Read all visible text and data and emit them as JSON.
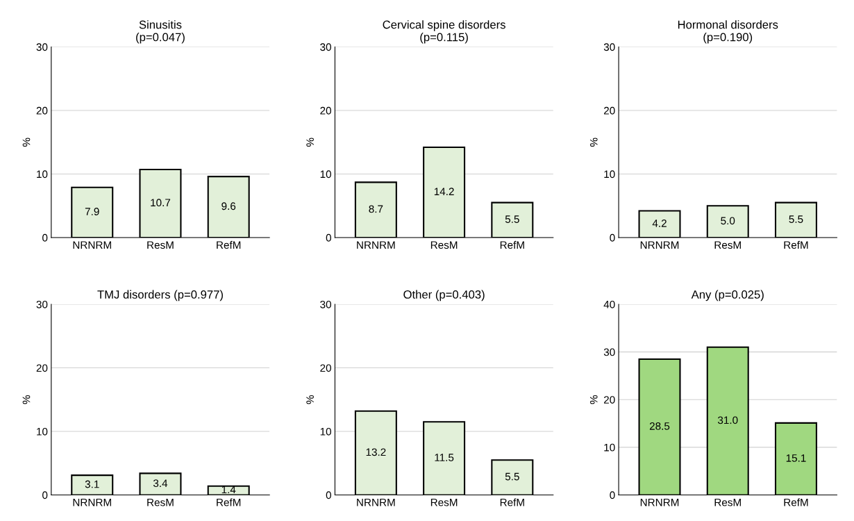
{
  "chart_data": [
    {
      "type": "bar",
      "title": "Sinusitis\n(p=0.047)",
      "ylabel": "%",
      "categories": [
        "NRNRM",
        "ResM",
        "RefM"
      ],
      "values": [
        7.9,
        10.7,
        9.6
      ],
      "value_labels": [
        "7.9",
        "10.7",
        "9.6"
      ],
      "color": "#e2f0d9",
      "ylim": [
        0,
        30
      ],
      "yticks": [
        0,
        10,
        20,
        30
      ],
      "grid": "y"
    },
    {
      "type": "bar",
      "title": "Cervical spine disorders\n(p=0.115)",
      "ylabel": "%",
      "categories": [
        "NRNRM",
        "ResM",
        "RefM"
      ],
      "values": [
        8.7,
        14.2,
        5.5
      ],
      "value_labels": [
        "8.7",
        "14.2",
        "5.5"
      ],
      "color": "#e2f0d9",
      "ylim": [
        0,
        30
      ],
      "yticks": [
        0,
        10,
        20,
        30
      ],
      "grid": "y"
    },
    {
      "type": "bar",
      "title": "Hormonal disorders\n(p=0.190)",
      "ylabel": "%",
      "categories": [
        "NRNRM",
        "ResM",
        "RefM"
      ],
      "values": [
        4.2,
        5,
        5.5
      ],
      "value_labels": [
        "4.2",
        "5.0",
        "5.5"
      ],
      "color": "#e2f0d9",
      "ylim": [
        0,
        30
      ],
      "yticks": [
        0,
        10,
        20,
        30
      ],
      "grid": "y"
    },
    {
      "type": "bar",
      "title": "TMJ disorders (p=0.977)",
      "ylabel": "%",
      "categories": [
        "NRNRM",
        "ResM",
        "RefM"
      ],
      "values": [
        3.1,
        3.4,
        1.4
      ],
      "value_labels": [
        "3.1",
        "3.4",
        "1.4"
      ],
      "color": "#e2f0d9",
      "ylim": [
        0,
        30
      ],
      "yticks": [
        0,
        10,
        20,
        30
      ],
      "grid": "y"
    },
    {
      "type": "bar",
      "title": "Other (p=0.403)",
      "ylabel": "%",
      "categories": [
        "NRNRM",
        "ResM",
        "RefM"
      ],
      "values": [
        13.2,
        11.5,
        5.5
      ],
      "value_labels": [
        "13.2",
        "11.5",
        "5.5"
      ],
      "color": "#e2f0d9",
      "ylim": [
        0,
        30
      ],
      "yticks": [
        0,
        10,
        20,
        30
      ],
      "grid": "y"
    },
    {
      "type": "bar",
      "title": "Any (p=0.025)",
      "ylabel": "%",
      "categories": [
        "NRNRM",
        "ResM",
        "RefM"
      ],
      "values": [
        28.5,
        31,
        15.1
      ],
      "value_labels": [
        "28.5",
        "31.0",
        "15.1"
      ],
      "color": "#a0d880",
      "ylim": [
        0,
        40
      ],
      "yticks": [
        0,
        10,
        20,
        30,
        40
      ],
      "grid": "y"
    }
  ]
}
